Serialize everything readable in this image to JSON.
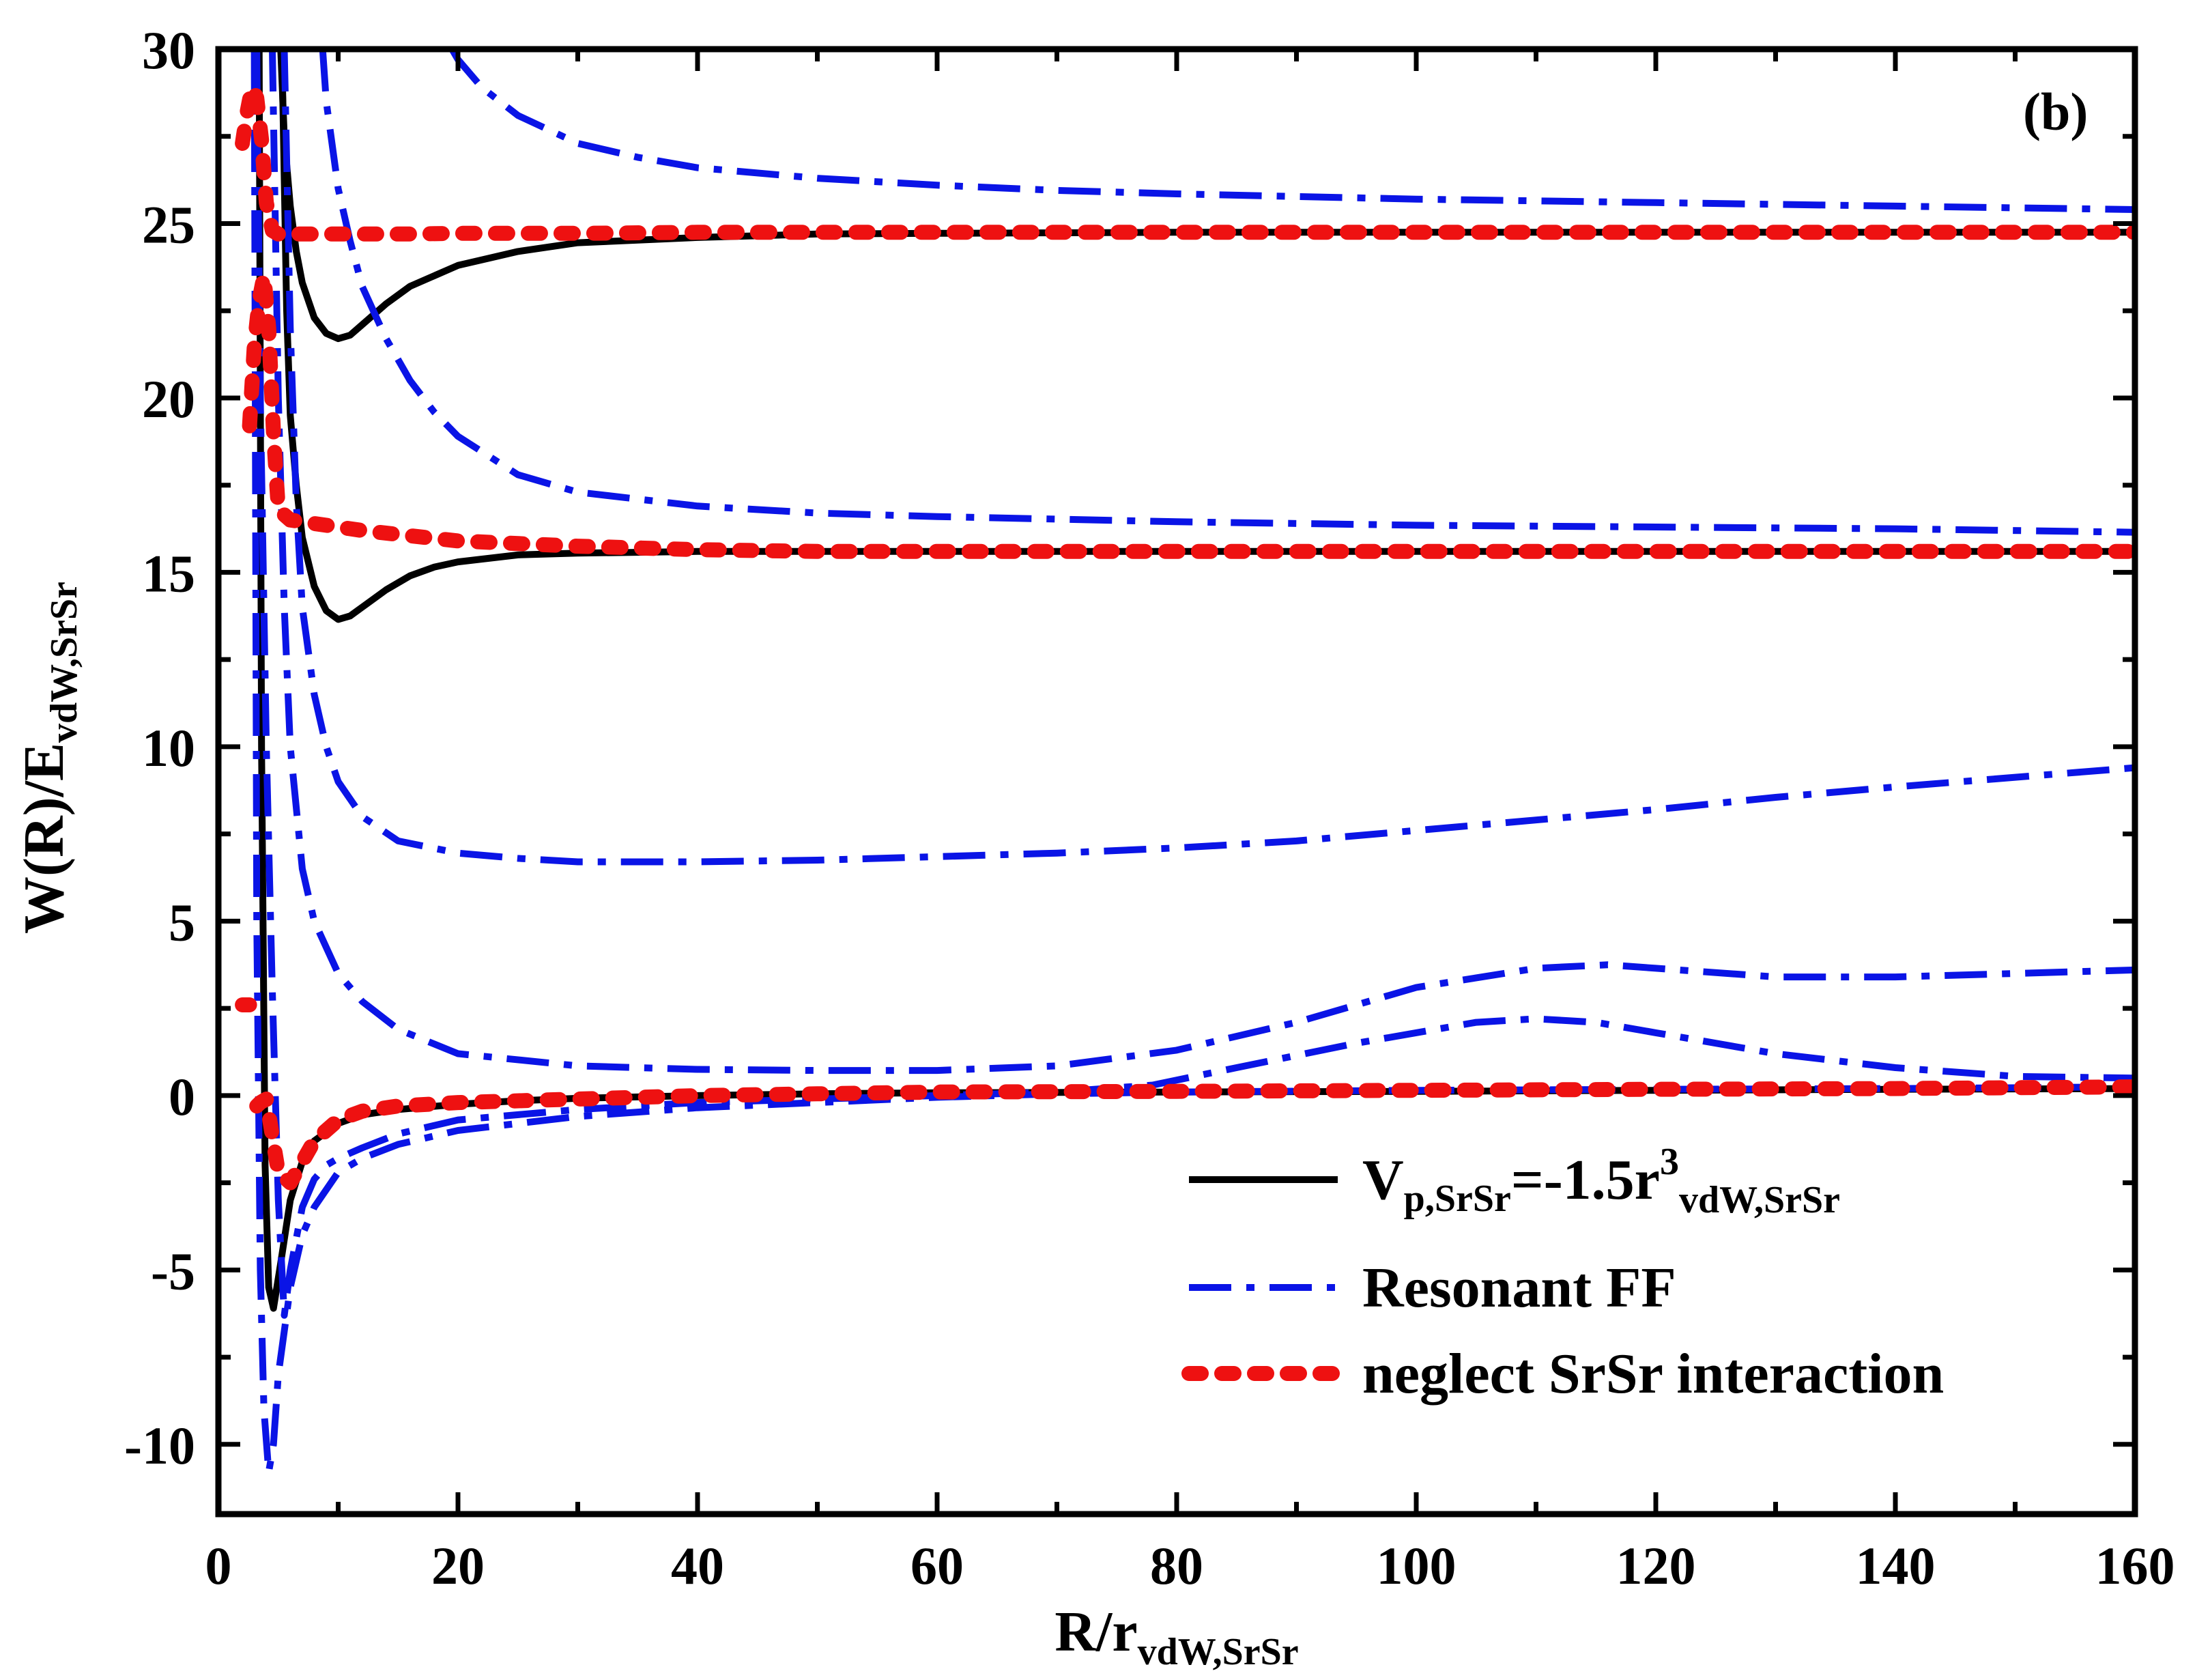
{
  "chart_data": {
    "type": "line",
    "panel_label": "(b)",
    "title": "",
    "xlabel": {
      "main": "R/r",
      "sub": "vdW,SrSr"
    },
    "ylabel": {
      "main": "W(R)/E",
      "sub": "vdW,SrSr"
    },
    "xlim": [
      0,
      160
    ],
    "ylim": [
      -12,
      30
    ],
    "xticks": [
      0,
      20,
      40,
      60,
      80,
      100,
      120,
      140,
      160
    ],
    "yticks": [
      -10,
      -5,
      0,
      5,
      10,
      15,
      20,
      25,
      30
    ],
    "xtick_labels": [
      "0",
      "20",
      "40",
      "60",
      "80",
      "100",
      "120",
      "140",
      "160"
    ],
    "ytick_labels": [
      "-10",
      "-5",
      "0",
      "5",
      "10",
      "15",
      "20",
      "25",
      "30"
    ],
    "legend_position": "bottom-right",
    "colors": {
      "black": "#000000",
      "blue": "#0a14e6",
      "red": "#ee1111"
    },
    "series": [
      {
        "name": "V_p,SrSr=-1.5r^3_vdW,SrSr",
        "legend": {
          "main": "V",
          "sub1": "p,SrSr",
          "mid": "=-1.5r",
          "sup": "3",
          "sub2": "vdW,SrSr"
        },
        "style": "solid",
        "color": "#000000",
        "curves": [
          {
            "x": [
              3.4,
              3.6,
              3.9,
              4.2,
              4.6,
              5.2,
              6,
              7,
              8,
              10,
              12,
              15,
              20,
              25,
              30,
              40,
              50,
              60,
              80,
              100,
              120,
              140,
              160
            ],
            "y": [
              30,
              10,
              -2,
              -5.5,
              -6.1,
              -4.8,
              -3.0,
              -1.9,
              -1.3,
              -0.8,
              -0.55,
              -0.4,
              -0.25,
              -0.15,
              -0.08,
              0,
              0.05,
              0.08,
              0.1,
              0.12,
              0.15,
              0.18,
              0.2
            ]
          },
          {
            "x": [
              5.3,
              5.7,
              6,
              6.5,
              7,
              8,
              9,
              10,
              11,
              12,
              14,
              16,
              18,
              20,
              25,
              30,
              40,
              50,
              60,
              80,
              100,
              120,
              140,
              160
            ],
            "y": [
              30,
              22.5,
              19.5,
              17.5,
              16,
              14.6,
              13.9,
              13.65,
              13.75,
              14,
              14.5,
              14.9,
              15.15,
              15.3,
              15.5,
              15.55,
              15.6,
              15.6,
              15.6,
              15.6,
              15.6,
              15.6,
              15.6,
              15.6
            ]
          },
          {
            "x": [
              5.2,
              5.5,
              6,
              6.5,
              7,
              8,
              9,
              10,
              11,
              12,
              14,
              16,
              20,
              25,
              30,
              40,
              50,
              60,
              80,
              100,
              120,
              140,
              160
            ],
            "y": [
              30,
              27.5,
              25.5,
              24.2,
              23.3,
              22.3,
              21.85,
              21.7,
              21.8,
              22.1,
              22.7,
              23.2,
              23.8,
              24.2,
              24.45,
              24.6,
              24.7,
              24.72,
              24.75,
              24.75,
              24.75,
              24.75,
              24.75
            ]
          }
        ]
      },
      {
        "name": "Resonant FF",
        "legend": {
          "main": "Resonant FF"
        },
        "style": "dashdot",
        "color": "#0a14e6",
        "curves": [
          {
            "x": [
              3.0,
              3.2,
              3.5,
              3.8,
              4.2,
              4.6,
              5,
              6,
              7,
              8,
              10,
              12,
              15,
              20,
              30,
              40,
              50,
              60,
              70,
              80,
              100,
              120,
              140,
              160
            ],
            "y": [
              30,
              5,
              -5,
              -9,
              -10.8,
              -10,
              -8,
              -5.5,
              -4,
              -3.2,
              -2.2,
              -1.8,
              -1.4,
              -1.0,
              -0.6,
              -0.35,
              -0.2,
              -0.05,
              0.05,
              0.1,
              0.15,
              0.18,
              0.2,
              0.25
            ]
          },
          {
            "x": [
              3.2,
              3.5,
              4,
              4.5,
              5,
              5.5,
              6,
              7,
              8,
              9,
              10,
              12,
              15,
              20,
              30,
              40,
              50,
              60,
              70,
              78,
              85,
              95,
              105,
              110,
              115,
              120,
              130,
              140,
              150,
              160
            ],
            "y": [
              30,
              20,
              10,
              3,
              -3,
              -6.3,
              -5,
              -3.2,
              -2.4,
              -2,
              -1.8,
              -1.5,
              -1.1,
              -0.7,
              -0.4,
              -0.2,
              -0.1,
              0,
              0.1,
              0.3,
              0.8,
              1.5,
              2.1,
              2.2,
              2.1,
              1.8,
              1.2,
              0.8,
              0.55,
              0.5
            ]
          },
          {
            "x": [
              4.5,
              5,
              5.5,
              6,
              7,
              8,
              10,
              12,
              15,
              20,
              30,
              40,
              50,
              60,
              70,
              80,
              90,
              100,
              110,
              116,
              120,
              130,
              140,
              160
            ],
            "y": [
              30,
              20,
              14,
              10,
              6.5,
              5,
              3.5,
              2.7,
              1.9,
              1.2,
              0.85,
              0.75,
              0.72,
              0.72,
              0.85,
              1.3,
              2.1,
              3.1,
              3.65,
              3.75,
              3.65,
              3.4,
              3.4,
              3.6
            ]
          },
          {
            "x": [
              5.5,
              6,
              6.5,
              7,
              8,
              9,
              10,
              12,
              15,
              20,
              25,
              30,
              40,
              50,
              60,
              70,
              80,
              90,
              100,
              110,
              120,
              130,
              140,
              160
            ],
            "y": [
              30,
              22,
              17,
              14,
              11.5,
              10,
              9,
              8,
              7.3,
              6.95,
              6.8,
              6.7,
              6.7,
              6.75,
              6.85,
              6.95,
              7.1,
              7.3,
              7.6,
              7.9,
              8.2,
              8.55,
              8.85,
              9.4
            ]
          },
          {
            "x": [
              8.7,
              9,
              10,
              11,
              12,
              14,
              16,
              18,
              20,
              25,
              30,
              40,
              50,
              60,
              80,
              100,
              120,
              140,
              160
            ],
            "y": [
              30,
              28.5,
              26,
              24.5,
              23.2,
              21.7,
              20.5,
              19.6,
              18.9,
              17.8,
              17.3,
              16.9,
              16.7,
              16.6,
              16.45,
              16.35,
              16.3,
              16.25,
              16.15
            ]
          },
          {
            "x": [
              19.5,
              20,
              22,
              25,
              30,
              35,
              40,
              50,
              60,
              70,
              80,
              100,
              120,
              140,
              160
            ],
            "y": [
              30,
              29.7,
              28.9,
              28.1,
              27.3,
              26.9,
              26.6,
              26.3,
              26.1,
              25.95,
              25.85,
              25.7,
              25.6,
              25.5,
              25.4
            ]
          }
        ]
      },
      {
        "name": "neglect SrSr interaction",
        "legend": {
          "main": "neglect SrSr interaction"
        },
        "style": "dotted",
        "color": "#ee1111",
        "curves": [
          {
            "x": [
              2,
              2.3,
              2.6
            ],
            "y": [
              2.6,
              2.6,
              2.6
            ]
          },
          {
            "x": [
              3.2,
              3.5,
              4,
              5,
              6,
              8,
              10,
              12,
              15,
              20,
              30,
              40,
              50,
              60,
              80,
              100,
              120,
              140,
              160
            ],
            "y": [
              -0.3,
              -0.2,
              -0.1,
              -2.2,
              -2.5,
              -1.3,
              -0.7,
              -0.45,
              -0.3,
              -0.2,
              -0.1,
              0,
              0.05,
              0.1,
              0.12,
              0.15,
              0.18,
              0.2,
              0.25
            ]
          },
          {
            "x": [
              2.6,
              3,
              3.4,
              3.8,
              4.2,
              4.6,
              5,
              6,
              8,
              12,
              16,
              20,
              30,
              40,
              50,
              60,
              80,
              100,
              120,
              140,
              160
            ],
            "y": [
              19.2,
              21.5,
              22.8,
              23.5,
              22,
              19,
              16.8,
              16.5,
              16.4,
              16.2,
              16.05,
              15.9,
              15.75,
              15.65,
              15.6,
              15.6,
              15.6,
              15.6,
              15.6,
              15.6,
              15.6
            ]
          },
          {
            "x": [
              2.0,
              2.4,
              2.8,
              3.2,
              3.6,
              4.0,
              4.5,
              5,
              6,
              8,
              12,
              16,
              20,
              30,
              40,
              50,
              60,
              80,
              100,
              120,
              140,
              160
            ],
            "y": [
              27.3,
              28.2,
              28.9,
              28.6,
              27.4,
              25.6,
              24.8,
              24.7,
              24.7,
              24.7,
              24.7,
              24.7,
              24.72,
              24.72,
              24.75,
              24.75,
              24.75,
              24.75,
              24.75,
              24.75,
              24.75,
              24.75
            ]
          }
        ]
      }
    ]
  }
}
